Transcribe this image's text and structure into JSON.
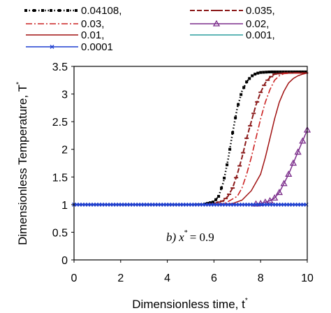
{
  "chart_data": {
    "type": "line",
    "title": "",
    "xlabel": "Dimensionless time, t",
    "xlabel_sup": "*",
    "ylabel": "Dimensionless Temperature, T",
    "ylabel_sup": "*",
    "xlim": [
      0,
      10
    ],
    "ylim": [
      0,
      3.5
    ],
    "xticks": [
      0,
      2,
      4,
      6,
      8,
      10
    ],
    "yticks": [
      0,
      0.5,
      1,
      1.5,
      2,
      2.5,
      3,
      3.5
    ],
    "xtick_labels": [
      "0",
      "2",
      "4",
      "6",
      "8",
      "10"
    ],
    "ytick_labels": [
      "0",
      "0.5",
      "1",
      "1.5",
      "2",
      "2.5",
      "3",
      "3.5"
    ],
    "grid": false,
    "legend_position": "top",
    "annotation": {
      "prefix": "b)",
      "var": "x",
      "sup": "*",
      "rest": "= 0.9"
    },
    "series": [
      {
        "name": "0.04108,",
        "color": "#000000",
        "style": "dotted-squares",
        "x": [
          0,
          5.0,
          5.6,
          6.0,
          6.2,
          6.4,
          6.6,
          6.8,
          7.0,
          7.2,
          7.4,
          7.6,
          7.8,
          8.0,
          8.4,
          9.0,
          10.0
        ],
        "y": [
          1,
          1,
          1.01,
          1.05,
          1.15,
          1.4,
          1.8,
          2.3,
          2.75,
          3.05,
          3.22,
          3.32,
          3.37,
          3.39,
          3.4,
          3.4,
          3.4
        ]
      },
      {
        "name": "0.035,",
        "color": "#8b1a1a",
        "style": "dash-bars",
        "x": [
          0,
          5.5,
          6.0,
          6.4,
          6.6,
          6.8,
          7.0,
          7.2,
          7.4,
          7.6,
          7.8,
          8.0,
          8.2,
          8.4,
          8.6,
          9.0,
          9.5,
          10.0
        ],
        "y": [
          1,
          1,
          1.02,
          1.07,
          1.15,
          1.3,
          1.55,
          1.85,
          2.2,
          2.5,
          2.8,
          3.03,
          3.2,
          3.3,
          3.36,
          3.38,
          3.38,
          3.38
        ]
      },
      {
        "name": "0.03,",
        "color": "#cc2222",
        "style": "dash-dot",
        "x": [
          0,
          6.0,
          6.5,
          7.0,
          7.2,
          7.4,
          7.6,
          7.8,
          8.0,
          8.2,
          8.4,
          8.6,
          8.8,
          9.0,
          9.5,
          10.0
        ],
        "y": [
          1,
          1,
          1.03,
          1.15,
          1.3,
          1.55,
          1.85,
          2.2,
          2.55,
          2.85,
          3.08,
          3.25,
          3.33,
          3.37,
          3.38,
          3.38
        ]
      },
      {
        "name": "0.02,",
        "color": "#7b2d8b",
        "style": "triangles",
        "x": [
          0,
          7.5,
          8.0,
          8.4,
          8.6,
          8.8,
          9.0,
          9.2,
          9.4,
          9.6,
          9.8,
          10.0
        ],
        "y": [
          1,
          1,
          1.02,
          1.07,
          1.12,
          1.22,
          1.38,
          1.55,
          1.75,
          1.95,
          2.15,
          2.35
        ]
      },
      {
        "name": "0.01,",
        "color": "#a01010",
        "style": "solid",
        "x": [
          0,
          6.4,
          6.8,
          7.2,
          7.6,
          8.0,
          8.2,
          8.4,
          8.6,
          8.8,
          9.0,
          9.2,
          9.4,
          9.6,
          9.8,
          10.0
        ],
        "y": [
          1,
          1,
          1.02,
          1.08,
          1.25,
          1.55,
          1.85,
          2.2,
          2.55,
          2.85,
          3.05,
          3.2,
          3.28,
          3.33,
          3.36,
          3.38
        ]
      },
      {
        "name": "0.001,",
        "color": "#2a9d9d",
        "style": "solid",
        "x": [
          0,
          10.0
        ],
        "y": [
          1,
          1
        ]
      },
      {
        "name": "0.0001",
        "color": "#1f3fd0",
        "style": "crosses",
        "x": [
          0,
          10.0
        ],
        "y": [
          1,
          1
        ]
      }
    ]
  }
}
